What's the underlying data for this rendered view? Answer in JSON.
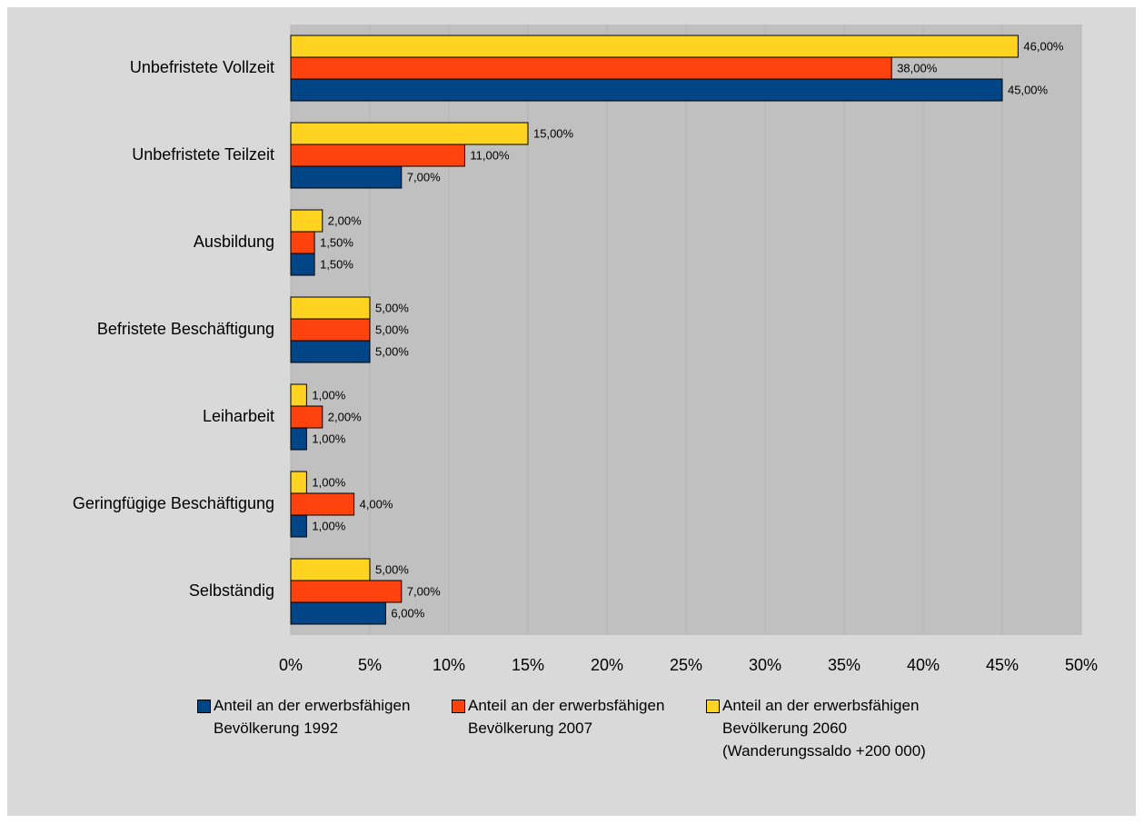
{
  "chart_data": {
    "type": "bar",
    "orientation": "horizontal",
    "categories": [
      "Unbefristete Vollzeit",
      "Unbefristete Teilzeit",
      "Ausbildung",
      "Befristete Beschäftigung",
      "Leiharbeit",
      "Geringfügige Beschäftigung",
      "Selbständig"
    ],
    "series": [
      {
        "name": "Anteil an der erwerbsfähigen Bevölkerung 1992",
        "color": "#004586",
        "values": [
          45,
          7,
          1.5,
          5,
          1,
          1,
          6
        ],
        "value_labels": [
          "45,00%",
          "7,00%",
          "1,50%",
          "5,00%",
          "1,00%",
          "1,00%",
          "6,00%"
        ]
      },
      {
        "name": "Anteil an der erwerbsfähigen Bevölkerung 2007",
        "color": "#ff420e",
        "values": [
          38,
          11,
          1.5,
          5,
          2,
          4,
          7
        ],
        "value_labels": [
          "38,00%",
          "11,00%",
          "1,50%",
          "5,00%",
          "2,00%",
          "4,00%",
          "7,00%"
        ]
      },
      {
        "name": "Anteil an der erwerbsfähigen Bevölkerung 2060 (Wanderungssaldo +200 000)",
        "color": "#ffd320",
        "values": [
          46,
          15,
          2,
          5,
          1,
          1,
          5
        ],
        "value_labels": [
          "46,00%",
          "15,00%",
          "2,00%",
          "5,00%",
          "1,00%",
          "1,00%",
          "5,00%"
        ]
      }
    ],
    "xlim": [
      0,
      50
    ],
    "xticks": [
      {
        "value": 0,
        "label": "0%"
      },
      {
        "value": 5,
        "label": "5%"
      },
      {
        "value": 10,
        "label": "10%"
      },
      {
        "value": 15,
        "label": "15%"
      },
      {
        "value": 20,
        "label": "20%"
      },
      {
        "value": 25,
        "label": "25%"
      },
      {
        "value": 30,
        "label": "30%"
      },
      {
        "value": 35,
        "label": "35%"
      },
      {
        "value": 40,
        "label": "40%"
      },
      {
        "value": 45,
        "label": "45%"
      },
      {
        "value": 50,
        "label": "50%"
      }
    ],
    "grid": true,
    "legend": "bottom"
  }
}
